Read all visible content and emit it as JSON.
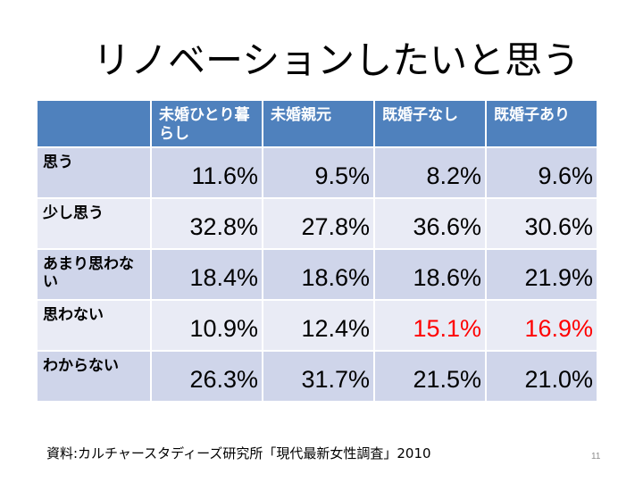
{
  "title": "リノベーションしたいと思う",
  "table": {
    "headers": [
      "",
      "未婚ひとり暮らし",
      "未婚親元",
      "既婚子なし",
      "既婚子あり"
    ],
    "rows": [
      {
        "label": "思う",
        "values": [
          "11.6%",
          "9.5%",
          "8.2%",
          "9.6%"
        ]
      },
      {
        "label": "少し思う",
        "values": [
          "32.8%",
          "27.8%",
          "36.6%",
          "30.6%"
        ]
      },
      {
        "label": "あまり思わない",
        "values": [
          "18.4%",
          "18.6%",
          "18.6%",
          "21.9%"
        ]
      },
      {
        "label": "思わない",
        "values": [
          "10.9%",
          "12.4%",
          "15.1%",
          "16.9%"
        ]
      },
      {
        "label": "わからない",
        "values": [
          "26.3%",
          "31.7%",
          "21.5%",
          "21.0%"
        ]
      }
    ]
  },
  "highlight_color": "#ff0000",
  "source": "資料:カルチャースタディーズ研究所「現代最新女性調査」2010",
  "page_number": "11"
}
